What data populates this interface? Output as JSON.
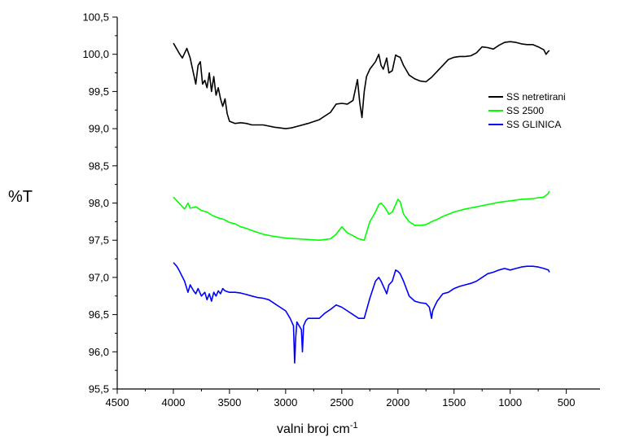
{
  "chart_data": {
    "type": "line",
    "title": "",
    "xlabel": "valni broj cm",
    "xlabel_superscript": "-1",
    "ylabel": "%T",
    "xlim": [
      4500,
      200
    ],
    "ylim": [
      95.5,
      100.5
    ],
    "x_ticks": [
      4500,
      4000,
      3500,
      3000,
      2500,
      2000,
      1500,
      1000,
      500
    ],
    "y_ticks": [
      "95,5",
      "96,0",
      "96,5",
      "97,0",
      "97,5",
      "98,0",
      "98,5",
      "99,0",
      "99,5",
      "100,0",
      "100,5"
    ],
    "y_tick_values": [
      95.5,
      96.0,
      96.5,
      97.0,
      97.5,
      98.0,
      98.5,
      99.0,
      99.5,
      100.0,
      100.5
    ],
    "grid": false,
    "legend_position": "right",
    "series": [
      {
        "name": "SS netretirani",
        "color": "#000000",
        "x": [
          4000,
          3950,
          3920,
          3880,
          3850,
          3800,
          3780,
          3760,
          3740,
          3720,
          3700,
          3680,
          3660,
          3640,
          3620,
          3600,
          3580,
          3560,
          3540,
          3520,
          3500,
          3450,
          3400,
          3350,
          3300,
          3200,
          3100,
          3000,
          2950,
          2900,
          2800,
          2700,
          2600,
          2550,
          2500,
          2450,
          2400,
          2360,
          2340,
          2320,
          2300,
          2280,
          2250,
          2200,
          2170,
          2150,
          2130,
          2100,
          2080,
          2050,
          2020,
          2000,
          1980,
          1950,
          1900,
          1850,
          1800,
          1750,
          1700,
          1650,
          1600,
          1550,
          1500,
          1450,
          1400,
          1350,
          1300,
          1250,
          1200,
          1150,
          1100,
          1050,
          1000,
          950,
          900,
          850,
          800,
          750,
          700,
          680,
          660,
          650
        ],
        "y": [
          100.15,
          100.02,
          99.95,
          100.08,
          99.95,
          99.6,
          99.85,
          99.9,
          99.6,
          99.65,
          99.55,
          99.75,
          99.5,
          99.7,
          99.45,
          99.55,
          99.4,
          99.3,
          99.4,
          99.2,
          99.1,
          99.07,
          99.08,
          99.07,
          99.05,
          99.05,
          99.02,
          99.0,
          99.01,
          99.03,
          99.07,
          99.12,
          99.22,
          99.33,
          99.34,
          99.33,
          99.38,
          99.66,
          99.35,
          99.15,
          99.5,
          99.7,
          99.8,
          99.9,
          100.0,
          99.85,
          99.8,
          99.95,
          99.75,
          99.78,
          99.99,
          99.97,
          99.96,
          99.85,
          99.72,
          99.67,
          99.64,
          99.63,
          99.69,
          99.77,
          99.85,
          99.93,
          99.96,
          99.97,
          99.97,
          99.98,
          100.02,
          100.1,
          100.09,
          100.07,
          100.12,
          100.16,
          100.17,
          100.16,
          100.14,
          100.13,
          100.13,
          100.1,
          100.06,
          100.0,
          100.04,
          100.05
        ]
      },
      {
        "name": "SS 2500",
        "color": "#00ff00",
        "x": [
          4000,
          3950,
          3900,
          3870,
          3850,
          3800,
          3750,
          3700,
          3650,
          3600,
          3550,
          3500,
          3450,
          3400,
          3350,
          3300,
          3200,
          3100,
          3000,
          2900,
          2800,
          2700,
          2600,
          2550,
          2500,
          2450,
          2400,
          2350,
          2300,
          2250,
          2200,
          2170,
          2150,
          2120,
          2100,
          2080,
          2050,
          2000,
          1980,
          1950,
          1900,
          1850,
          1800,
          1750,
          1700,
          1650,
          1600,
          1550,
          1500,
          1450,
          1400,
          1300,
          1200,
          1100,
          1000,
          900,
          800,
          700,
          660,
          650
        ],
        "y": [
          98.08,
          98.0,
          97.92,
          98.0,
          97.93,
          97.95,
          97.9,
          97.88,
          97.83,
          97.8,
          97.78,
          97.74,
          97.72,
          97.68,
          97.66,
          97.63,
          97.58,
          97.55,
          97.53,
          97.52,
          97.51,
          97.5,
          97.52,
          97.58,
          97.68,
          97.6,
          97.56,
          97.52,
          97.5,
          97.75,
          97.88,
          97.98,
          98.0,
          97.95,
          97.9,
          97.85,
          97.88,
          98.05,
          98.02,
          97.85,
          97.75,
          97.7,
          97.7,
          97.71,
          97.75,
          97.78,
          97.82,
          97.85,
          97.88,
          97.9,
          97.92,
          97.95,
          97.98,
          98.01,
          98.03,
          98.05,
          98.06,
          98.08,
          98.13,
          98.16
        ]
      },
      {
        "name": "SS GLINICA",
        "color": "#0000ff",
        "x": [
          4000,
          3970,
          3950,
          3900,
          3870,
          3850,
          3820,
          3800,
          3780,
          3750,
          3720,
          3700,
          3680,
          3660,
          3640,
          3620,
          3600,
          3580,
          3560,
          3540,
          3500,
          3450,
          3400,
          3350,
          3300,
          3250,
          3200,
          3150,
          3100,
          3050,
          3000,
          2960,
          2930,
          2920,
          2910,
          2900,
          2880,
          2860,
          2850,
          2840,
          2820,
          2800,
          2700,
          2650,
          2600,
          2550,
          2500,
          2450,
          2400,
          2350,
          2300,
          2250,
          2200,
          2170,
          2150,
          2120,
          2100,
          2080,
          2050,
          2020,
          2000,
          1980,
          1950,
          1900,
          1850,
          1800,
          1750,
          1720,
          1700,
          1690,
          1670,
          1650,
          1600,
          1550,
          1500,
          1450,
          1400,
          1350,
          1300,
          1250,
          1200,
          1150,
          1100,
          1050,
          1000,
          950,
          900,
          850,
          800,
          750,
          700,
          660,
          650
        ],
        "y": [
          97.2,
          97.15,
          97.1,
          96.95,
          96.8,
          96.9,
          96.82,
          96.78,
          96.85,
          96.75,
          96.8,
          96.7,
          96.78,
          96.68,
          96.8,
          96.75,
          96.82,
          96.78,
          96.85,
          96.82,
          96.8,
          96.8,
          96.79,
          96.77,
          96.75,
          96.73,
          96.72,
          96.7,
          96.65,
          96.6,
          96.55,
          96.45,
          96.35,
          95.85,
          96.2,
          96.4,
          96.35,
          96.3,
          96.0,
          96.35,
          96.42,
          96.45,
          96.45,
          96.52,
          96.57,
          96.63,
          96.6,
          96.55,
          96.5,
          96.45,
          96.45,
          96.72,
          96.95,
          97.0,
          96.95,
          96.85,
          96.78,
          96.9,
          96.95,
          97.1,
          97.08,
          97.05,
          96.95,
          96.75,
          96.68,
          96.66,
          96.65,
          96.6,
          96.45,
          96.55,
          96.62,
          96.68,
          96.78,
          96.8,
          96.85,
          96.88,
          96.9,
          96.92,
          96.95,
          97.0,
          97.05,
          97.07,
          97.1,
          97.12,
          97.1,
          97.12,
          97.14,
          97.15,
          97.15,
          97.14,
          97.12,
          97.1,
          97.07
        ]
      }
    ]
  }
}
